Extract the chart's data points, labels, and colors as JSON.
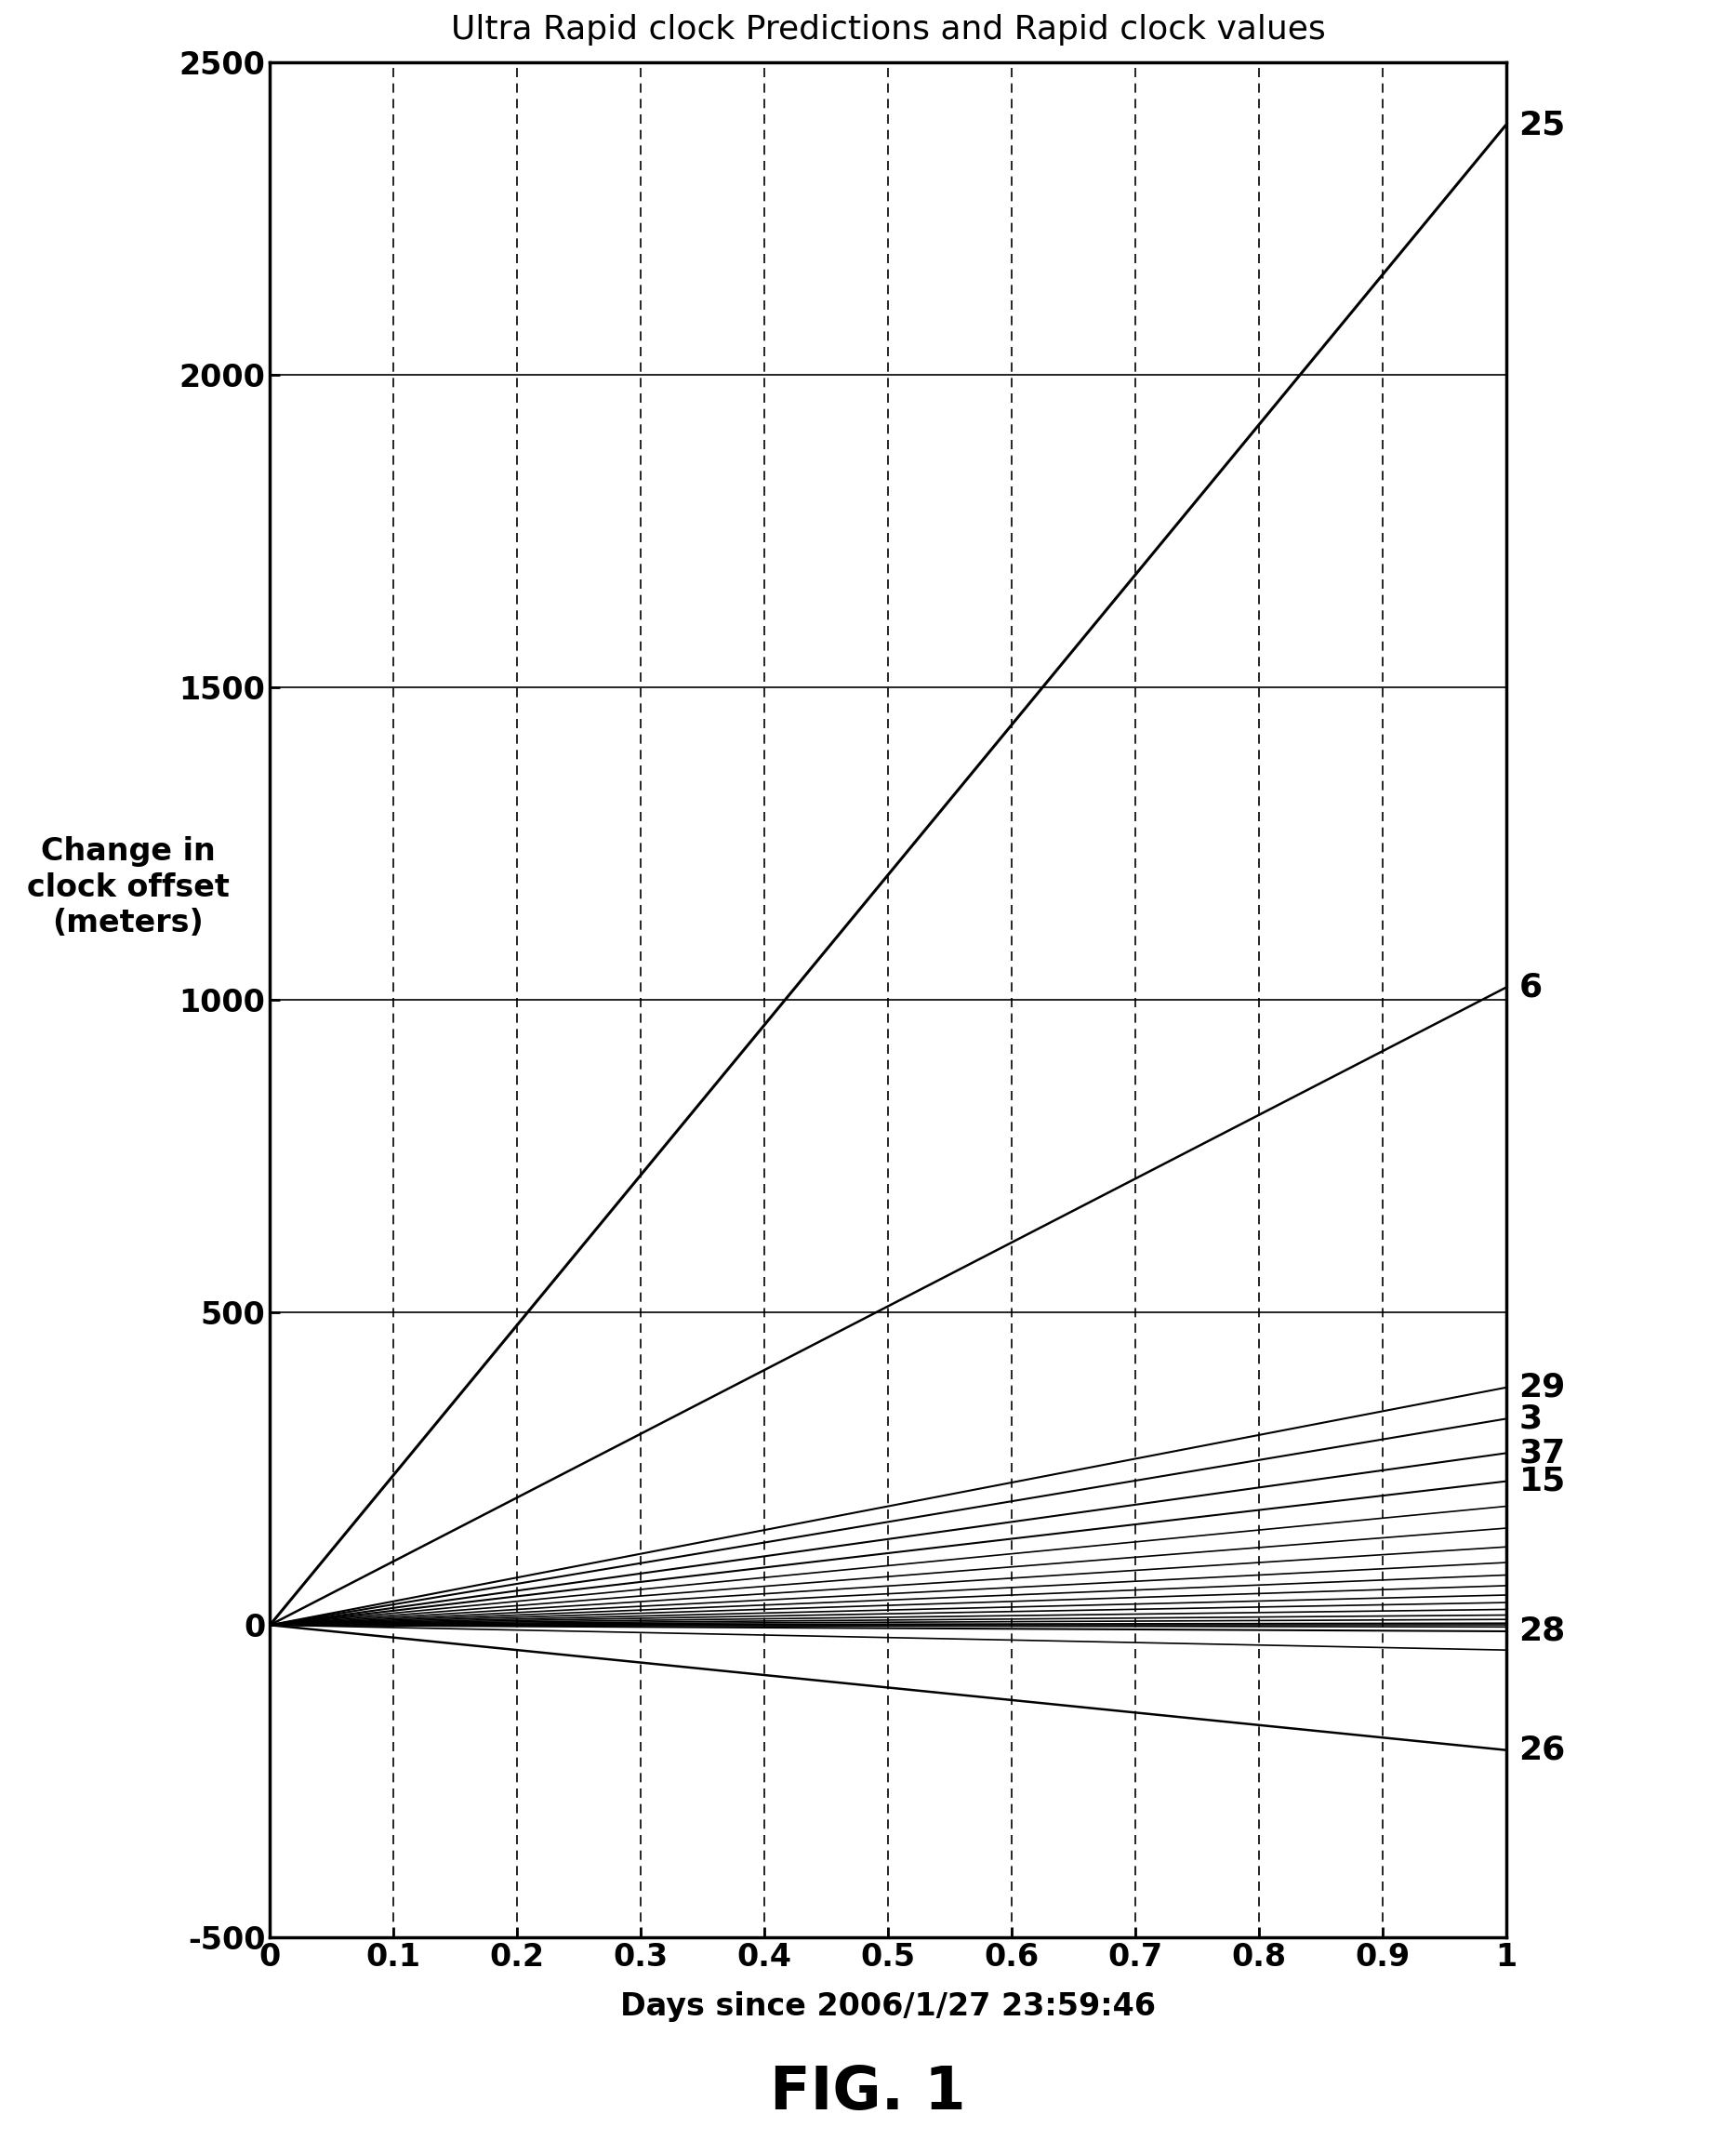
{
  "title": "Ultra Rapid clock Predictions and Rapid clock values",
  "xlabel": "Days since 2006/1/27 23:59:46",
  "ylabel": "Change in\nclock offset\n(meters)",
  "xlim": [
    0,
    1.0
  ],
  "ylim": [
    -500,
    2500
  ],
  "yticks": [
    -500,
    0,
    500,
    1000,
    1500,
    2000,
    2500
  ],
  "xticks": [
    0,
    0.1,
    0.2,
    0.3,
    0.4,
    0.5,
    0.6,
    0.7,
    0.8,
    0.9,
    1.0
  ],
  "fig_label": "FIG. 1",
  "lines": [
    {
      "label": "25",
      "slope": 2400,
      "lw": 2.2
    },
    {
      "label": "6",
      "slope": 1020,
      "lw": 1.8
    },
    {
      "label": "29",
      "slope": 380,
      "lw": 1.5
    },
    {
      "label": "3",
      "slope": 330,
      "lw": 1.5
    },
    {
      "label": "37",
      "slope": 275,
      "lw": 1.5
    },
    {
      "label": "15",
      "slope": 230,
      "lw": 1.5
    },
    {
      "label": "",
      "slope": 190,
      "lw": 1.2
    },
    {
      "label": "",
      "slope": 155,
      "lw": 1.2
    },
    {
      "label": "",
      "slope": 125,
      "lw": 1.2
    },
    {
      "label": "",
      "slope": 100,
      "lw": 1.2
    },
    {
      "label": "",
      "slope": 80,
      "lw": 1.2
    },
    {
      "label": "",
      "slope": 63,
      "lw": 1.2
    },
    {
      "label": "",
      "slope": 48,
      "lw": 1.2
    },
    {
      "label": "",
      "slope": 36,
      "lw": 1.2
    },
    {
      "label": "",
      "slope": 25,
      "lw": 1.2
    },
    {
      "label": "",
      "slope": 16,
      "lw": 1.2
    },
    {
      "label": "",
      "slope": 9,
      "lw": 1.2
    },
    {
      "label": "",
      "slope": 3,
      "lw": 1.2
    },
    {
      "label": "",
      "slope": -3,
      "lw": 1.2
    },
    {
      "label": "28",
      "slope": -10,
      "lw": 1.5
    },
    {
      "label": "",
      "slope": -40,
      "lw": 1.2
    },
    {
      "label": "26",
      "slope": -200,
      "lw": 1.8
    }
  ]
}
